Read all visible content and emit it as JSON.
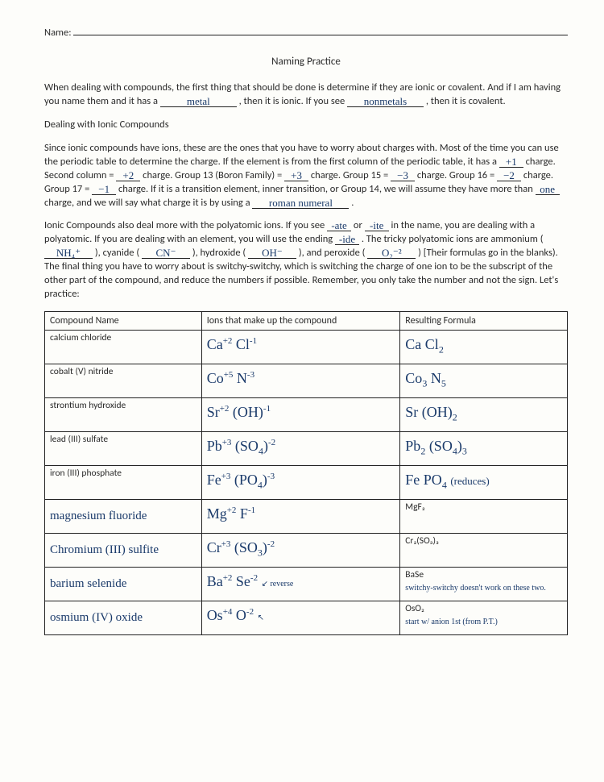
{
  "header": {
    "name_label": "Name:",
    "title": "Naming Practice"
  },
  "intro": {
    "text1": "When dealing with compounds, the first thing that should be done is determine if they are ionic or covalent. And if I am having you name them and it has a ",
    "blank1": "metal",
    "text2": ", then it is ionic.  If you see ",
    "blank2": "nonmetals",
    "text3": ", then it is covalent."
  },
  "ionic_head": "Dealing with Ionic Compounds",
  "para2": {
    "t1": "Since ionic compounds have ions, these are the ones that you have to worry about charges with.  Most of the time you can use the periodic table to determine the charge.  If the element is from the first column of the periodic table, it has a ",
    "b1": "+1",
    "t2": " charge.  Second column = ",
    "b2": "+2",
    "t3": " charge.  Group 13 (Boron Family) = ",
    "b3": "+3",
    "t4": " charge. Group 15 = ",
    "b4": "−3",
    "t5": " charge. Group 16 = ",
    "b5": "−2",
    "t6": " charge.  Group 17 = ",
    "b6": "−1",
    "t7": " charge.  If it is a transition element, inner transition, or Group 14, we will assume they have more than ",
    "b7": "one",
    "t8": " charge, and we will say what charge it is by using a ",
    "b8": "roman  numeral",
    "t9": "."
  },
  "para3": {
    "t1": "Ionic Compounds also deal more with the polyatomic ions.  If you see ",
    "b1": "-ate",
    "t2": " or ",
    "b2": "-ite",
    "t3": " in the name, you are dealing with a polyatomic.  If you are dealing with an element, you will use the ending ",
    "b3": "-ide",
    "t4": ".  The tricky polyatomic ions are ammonium (",
    "b4": "NH₄⁺",
    "t5": "), cyanide (",
    "b5": "CN⁻",
    "t6": "), hydroxide (",
    "b6": "OH⁻",
    "t7": "), and peroxide (",
    "b7": "O₂⁻²",
    "t8": ") [Their formulas go in the blanks).  The final thing you have to worry about is switchy-switchy, which is switching the charge of one ion to be the subscript of the other part of the compound, and reduce the numbers if possible.  Remember, you only take the number and not the sign. Let's practice:"
  },
  "table": {
    "headers": [
      "Compound Name",
      "Ions that make up the compound",
      "Resulting Formula"
    ],
    "rows": [
      {
        "name_printed": "calcium chloride",
        "name_hand": "",
        "ions_html": "Ca<sup>+2</sup>  Cl<sup>-1</sup>",
        "form_printed": "",
        "form_hand_html": "Ca Cl<sub>2</sub>",
        "note": ""
      },
      {
        "name_printed": "cobalt (V) nitride",
        "name_hand": "",
        "ions_html": "Co<sup>+5</sup> N<sup>-3</sup>",
        "form_printed": "",
        "form_hand_html": "Co<sub>3</sub> N<sub>5</sub>",
        "note": ""
      },
      {
        "name_printed": "strontium hydroxide",
        "name_hand": "",
        "ions_html": "Sr<sup>+2</sup> (OH)<sup>-1</sup>",
        "form_printed": "",
        "form_hand_html": "Sr (OH)<sub>2</sub>",
        "note": ""
      },
      {
        "name_printed": "lead (III) sulfate",
        "name_hand": "",
        "ions_html": "Pb<sup>+3</sup>  (SO<sub>4</sub>)<sup>-2</sup>",
        "form_printed": "",
        "form_hand_html": "Pb<sub>2</sub> (SO<sub>4</sub>)<sub>3</sub>",
        "note": ""
      },
      {
        "name_printed": "iron (III) phosphate",
        "name_hand": "",
        "ions_html": "Fe<sup>+3</sup> (PO<sub>4</sub>)<sup>-3</sup>",
        "form_printed": "",
        "form_hand_html": "Fe PO<sub>4</sub>  <span style='font-size:13px'>(reduces)</span>",
        "note": ""
      },
      {
        "name_printed": "",
        "name_hand": "magnesium fluoride",
        "ions_html": "Mg<sup>+2</sup>  F<sup>-1</sup>",
        "form_printed": "MgF₂",
        "form_hand_html": "",
        "note": ""
      },
      {
        "name_printed": "",
        "name_hand": "Chromium (III) sulfite",
        "ions_html": "Cr<sup>+3</sup>  (SO<sub>3</sub>)<sup>-2</sup>",
        "form_printed": "Cr₂(SO₃)₃",
        "form_hand_html": "",
        "note": ""
      },
      {
        "name_printed": "",
        "name_hand": "barium selenide",
        "ions_html": "Ba<sup>+2</sup> Se<sup>-2</sup> <span class='note'>↙ reverse</span>",
        "form_printed": "BaSe",
        "form_hand_html": "",
        "note": "switchy-switchy doesn't work on these two."
      },
      {
        "name_printed": "",
        "name_hand": "osmium (IV) oxide",
        "ions_html": "Os<sup>+4</sup>  O<sup>-2</sup> <span class='note'>↖</span>",
        "form_printed": "OsO₂",
        "form_hand_html": "",
        "note": "start w/ anion 1st (from P.T.)"
      }
    ]
  }
}
